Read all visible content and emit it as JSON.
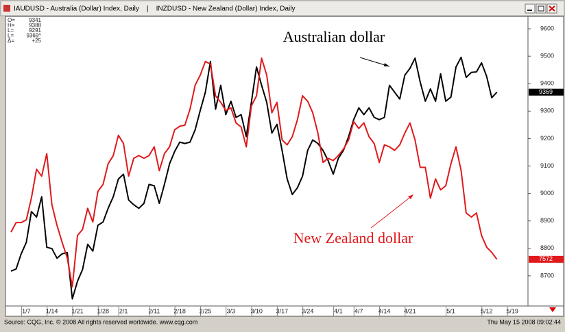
{
  "window_title": "IAUDUSD - Australia (Dollar) Index, Daily    |    INZDUSD - New Zealand (Dollar) Index, Daily",
  "quote_box": [
    [
      "O=",
      "9341"
    ],
    [
      "H=",
      "9388"
    ],
    [
      "L=",
      "9291"
    ],
    [
      "L=",
      "9369^"
    ],
    [
      "Δ=",
      "+25"
    ]
  ],
  "footer": {
    "source": "Source: CQG, Inc. © 2008 All rights reserved worldwide. www.cqg.com",
    "timestamp": "Thu May 15 2008 09:02:44"
  },
  "chart_data": {
    "type": "line",
    "categories": [
      null,
      null,
      null,
      "1/7",
      null,
      null,
      null,
      null,
      "1/14",
      null,
      null,
      null,
      null,
      "1/21",
      null,
      null,
      null,
      null,
      "1/28",
      null,
      null,
      null,
      "2/1",
      null,
      null,
      null,
      null,
      null,
      "2/11",
      null,
      null,
      null,
      null,
      "2/18",
      null,
      null,
      null,
      null,
      "2/25",
      null,
      null,
      null,
      null,
      "3/3",
      null,
      null,
      null,
      null,
      "3/10",
      null,
      null,
      null,
      null,
      "3/17",
      null,
      null,
      null,
      null,
      "3/24",
      null,
      null,
      null,
      null,
      null,
      "4/1",
      null,
      null,
      null,
      "4/7",
      null,
      null,
      null,
      null,
      "4/14",
      null,
      null,
      null,
      null,
      "4/21",
      null,
      null,
      null,
      null,
      null,
      null,
      null,
      "5/1",
      null,
      null,
      null,
      null,
      null,
      null,
      "5/12",
      null,
      null,
      null,
      null,
      "5/19"
    ],
    "series": [
      {
        "name": "Australian dollar",
        "color": "#000000",
        "price_tag": "9369",
        "values": [
          8717,
          8725,
          8780,
          8822,
          8934,
          8914,
          8988,
          8804,
          8799,
          8764,
          8780,
          8785,
          8616,
          8680,
          8723,
          8815,
          8790,
          8884,
          8896,
          8946,
          8988,
          9053,
          9070,
          8976,
          8959,
          8946,
          8964,
          9033,
          9028,
          8964,
          9033,
          9108,
          9153,
          9187,
          9182,
          9187,
          9232,
          9302,
          9369,
          9481,
          9307,
          9394,
          9287,
          9336,
          9277,
          9287,
          9207,
          9332,
          9461,
          9394,
          9332,
          9220,
          9252,
          9157,
          9053,
          8996,
          9021,
          9063,
          9157,
          9195,
          9182,
          9157,
          9120,
          9070,
          9128,
          9157,
          9207,
          9269,
          9312,
          9287,
          9312,
          9277,
          9269,
          9277,
          9394,
          9369,
          9344,
          9431,
          9456,
          9493,
          9406,
          9336,
          9381,
          9336,
          9436,
          9336,
          9351,
          9461,
          9496,
          9423,
          9441,
          9443,
          9476,
          9426,
          9349,
          9369,
          null,
          null,
          null
        ]
      },
      {
        "name": "New Zealand dollar",
        "color": "#e0191b",
        "price_tag": "7572",
        "values": [
          8859,
          8894,
          8894,
          8904,
          8983,
          9088,
          9063,
          9145,
          8959,
          8884,
          8822,
          8765,
          8660,
          8847,
          8869,
          8946,
          8896,
          9008,
          9033,
          9108,
          9138,
          9212,
          9182,
          9063,
          9128,
          9138,
          9128,
          9138,
          9170,
          9083,
          9145,
          9170,
          9232,
          9245,
          9249,
          9307,
          9394,
          9431,
          9481,
          9471,
          9356,
          9332,
          9302,
          9312,
          9257,
          9242,
          9170,
          9319,
          9356,
          9493,
          9431,
          9294,
          9332,
          9195,
          9177,
          9207,
          9269,
          9356,
          9336,
          9294,
          9220,
          9113,
          9128,
          9120,
          9138,
          9162,
          9195,
          9262,
          9237,
          9257,
          9207,
          9182,
          9113,
          9177,
          9170,
          9157,
          9177,
          9220,
          9257,
          9195,
          9095,
          9095,
          8983,
          9053,
          9013,
          9028,
          9108,
          9170,
          9083,
          8929,
          8914,
          8929,
          8847,
          8804,
          8785,
          8760,
          null,
          null,
          null
        ]
      }
    ],
    "ylim": [
      8590,
      9645
    ],
    "yticks": [
      8700,
      8800,
      8900,
      9000,
      9100,
      9200,
      9300,
      9400,
      9500,
      9600
    ],
    "grid": false
  }
}
